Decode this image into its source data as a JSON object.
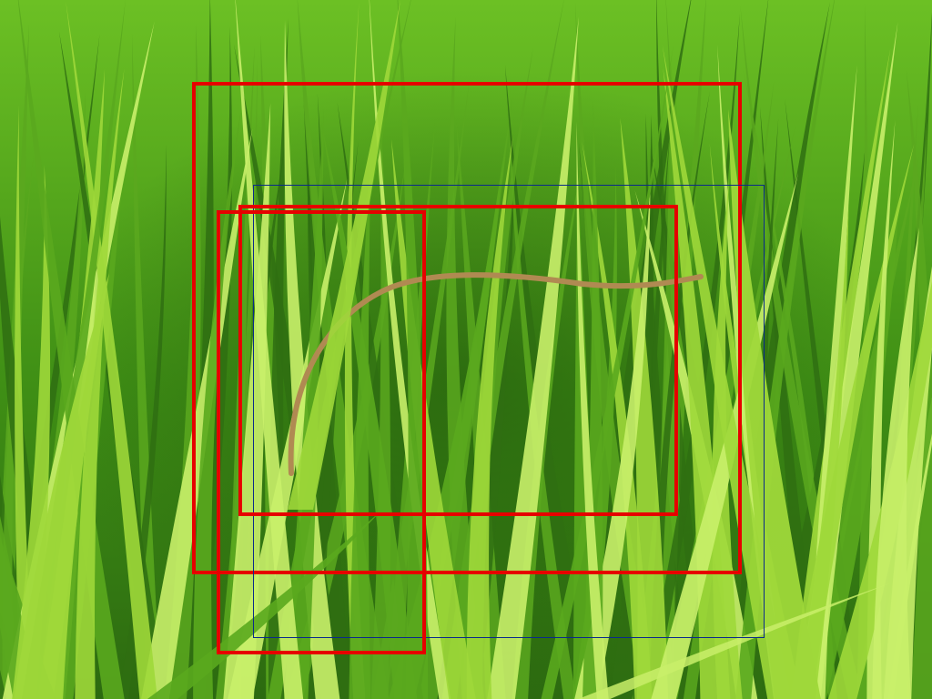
{
  "scene": {
    "subject": "rice-plant-leaves",
    "palette": {
      "leaf_dark": "#2f6e12",
      "leaf_mid": "#5aa81e",
      "leaf_light": "#9fd83a",
      "leaf_highlight": "#c9ef6a",
      "blight_leaf": "#b08a52"
    }
  },
  "annotations": {
    "box_colors": {
      "red": "#e60000",
      "blue": "#0a2a8a"
    },
    "box_count": 4
  }
}
